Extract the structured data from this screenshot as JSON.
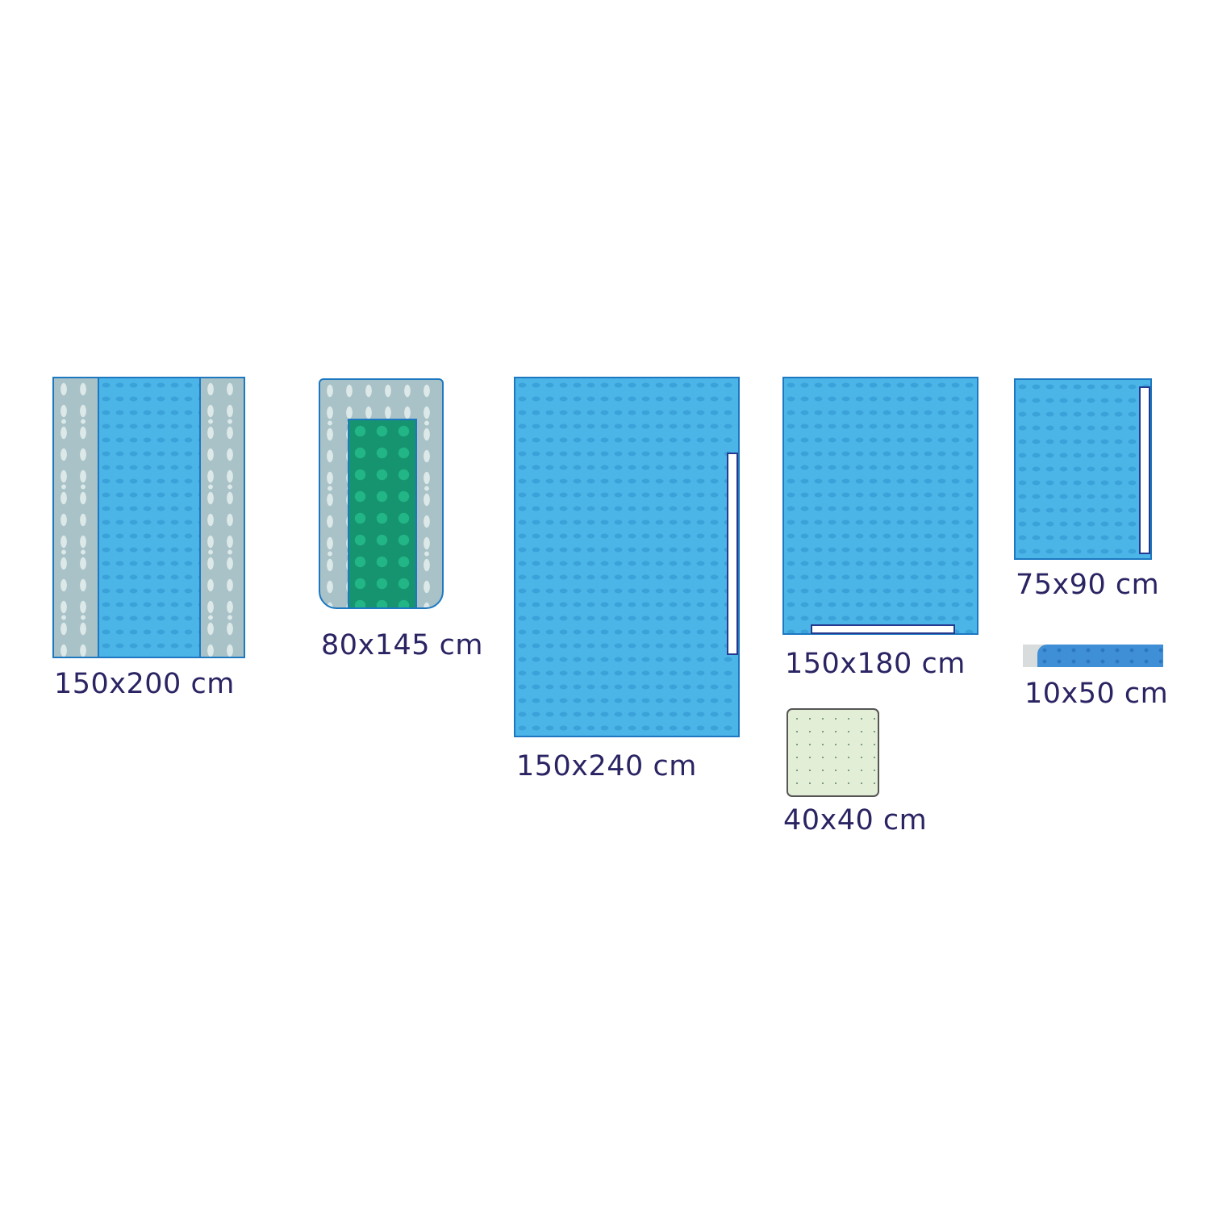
{
  "items": [
    {
      "label": "150x200 cm"
    },
    {
      "label": "80x145 cm"
    },
    {
      "label": "150x240 cm"
    },
    {
      "label": "150x180 cm"
    },
    {
      "label": "40x40 cm"
    },
    {
      "label": "75x90 cm"
    },
    {
      "label": "10x50 cm"
    }
  ],
  "colors": {
    "drape_blue": "#4cb5e8",
    "border_blue": "#1d78c1",
    "grey_panel": "#a8c2c8",
    "green_panel": "#16936f",
    "pad_green": "#e3eed6",
    "text": "#2a2463"
  }
}
